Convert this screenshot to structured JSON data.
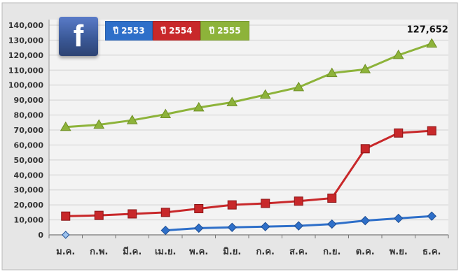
{
  "chart_data": {
    "type": "line",
    "categories": [
      "ม.ค.",
      "ก.พ.",
      "มี.ค.",
      "เม.ย.",
      "พ.ค.",
      "มิ.ย.",
      "ก.ค.",
      "ส.ค.",
      "ก.ย.",
      "ต.ค.",
      "พ.ย.",
      "ธ.ค."
    ],
    "yticks": [
      "0",
      "10,000",
      "20,000",
      "30,000",
      "40,000",
      "50,000",
      "60,000",
      "70,000",
      "80,000",
      "90,000",
      "100,000",
      "110,000",
      "120,000",
      "130,000",
      "140,000"
    ],
    "ylim": [
      0,
      140000
    ],
    "grid": true,
    "legend_position": "top-left",
    "annotation": {
      "text": "127,652",
      "series": "ปี 2555",
      "category": "ธ.ค."
    },
    "series": [
      {
        "name": "ปี 2553",
        "color": "#2e6fc9",
        "marker": "diamond",
        "values": [
          0,
          null,
          null,
          3000,
          4500,
          5000,
          5500,
          6000,
          7200,
          9500,
          11000,
          12500
        ]
      },
      {
        "name": "ปี 2554",
        "color": "#c8282a",
        "marker": "square",
        "values": [
          12500,
          13000,
          14000,
          15000,
          17500,
          20000,
          21000,
          22500,
          24500,
          57500,
          68000,
          69500
        ]
      },
      {
        "name": "ปี 2555",
        "color": "#8db33a",
        "marker": "triangle",
        "values": [
          72000,
          73500,
          76500,
          80500,
          85000,
          88500,
          93500,
          98500,
          108000,
          110500,
          120000,
          127652
        ]
      }
    ]
  },
  "logo": {
    "letter": "f",
    "icon": "facebook-logo-icon"
  }
}
